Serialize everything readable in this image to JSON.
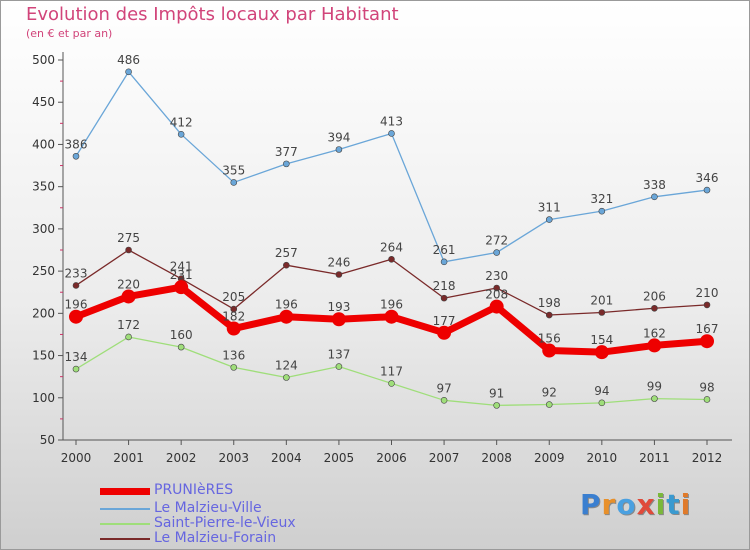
{
  "header": {
    "title": "Evolution des Impôts locaux par Habitant",
    "subtitle": "(en € et par an)"
  },
  "logo": {
    "text": "Proxiti",
    "letters": [
      {
        "ch": "P",
        "color": "#3a7fd0"
      },
      {
        "ch": "r",
        "color": "#e8902a"
      },
      {
        "ch": "o",
        "color": "#4aa0e0"
      },
      {
        "ch": "x",
        "color": "#e04a3a"
      },
      {
        "ch": "i",
        "color": "#7ab83a"
      },
      {
        "ch": "t",
        "color": "#3a9ad0"
      },
      {
        "ch": "i",
        "color": "#e07a2a"
      }
    ]
  },
  "chart_data": {
    "type": "line",
    "title": "Evolution des Impôts locaux par Habitant",
    "subtitle": "(en € et par an)",
    "categories": [
      "2000",
      "2001",
      "2002",
      "2003",
      "2004",
      "2005",
      "2006",
      "2007",
      "2008",
      "2009",
      "2010",
      "2011",
      "2012"
    ],
    "yticks": [
      50,
      100,
      150,
      200,
      250,
      300,
      350,
      400,
      450,
      500
    ],
    "ylim": [
      50,
      500
    ],
    "legend_position": "bottom-left",
    "series": [
      {
        "name": "PRUNIèRES",
        "color": "#ee0000",
        "width": 7,
        "marker": 7,
        "values": [
          196,
          220,
          231,
          182,
          196,
          193,
          196,
          177,
          208,
          156,
          154,
          162,
          167
        ]
      },
      {
        "name": "Le Malzieu-Ville",
        "color": "#6aa6d8",
        "width": 1.3,
        "marker": 3,
        "values": [
          386,
          486,
          412,
          355,
          377,
          394,
          413,
          261,
          272,
          311,
          321,
          338,
          346
        ]
      },
      {
        "name": "Saint-Pierre-le-Vieux",
        "color": "#9fde7a",
        "width": 1.3,
        "marker": 3,
        "values": [
          134,
          172,
          160,
          136,
          124,
          137,
          117,
          97,
          91,
          92,
          94,
          99,
          98
        ]
      },
      {
        "name": "Le Malzieu-Forain",
        "color": "#7a2a2a",
        "width": 1.3,
        "marker": 3,
        "values": [
          233,
          275,
          241,
          205,
          257,
          246,
          264,
          218,
          230,
          198,
          201,
          206,
          210
        ]
      }
    ]
  }
}
